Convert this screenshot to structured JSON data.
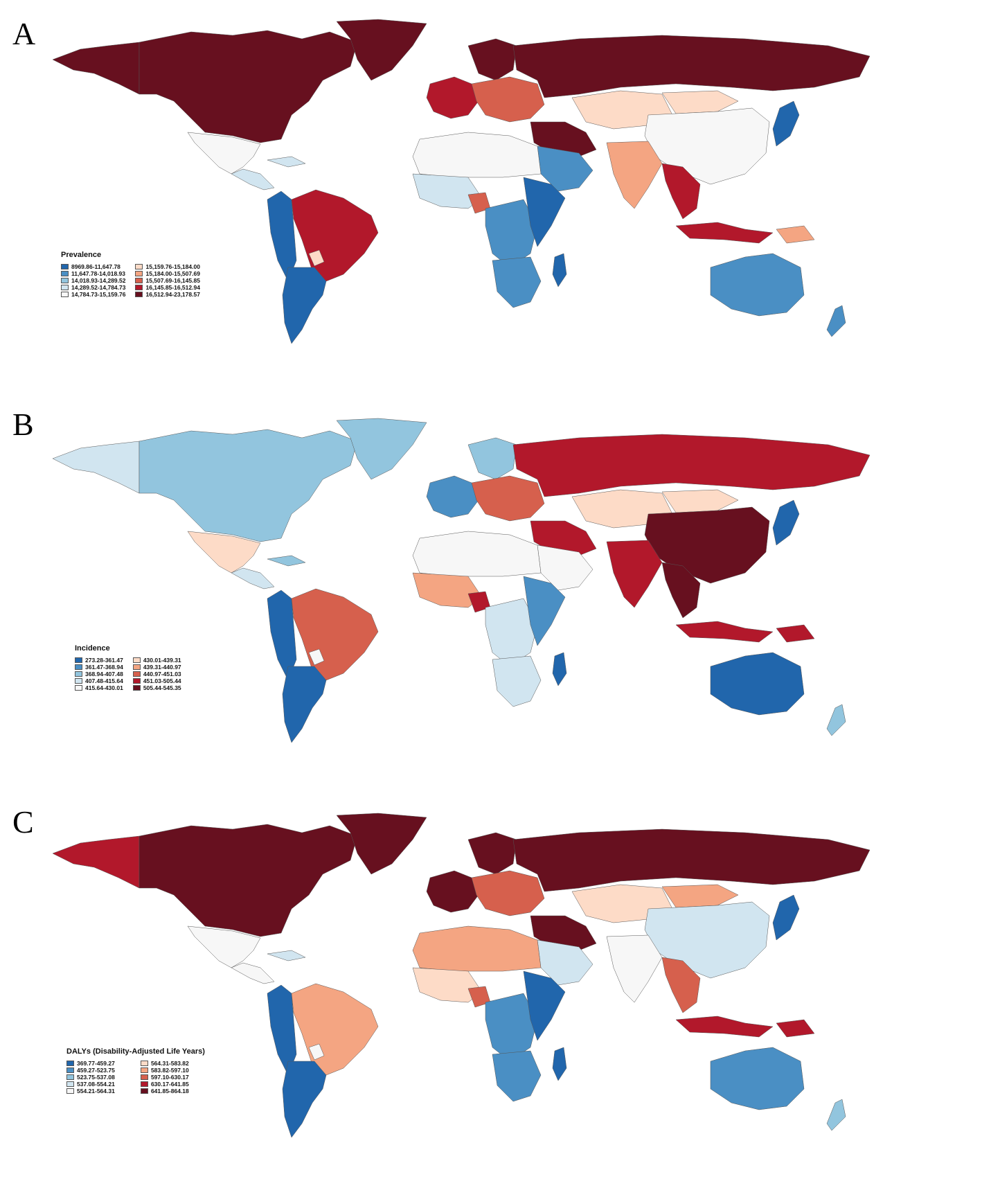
{
  "panels": [
    {
      "letter": "A",
      "legend": {
        "title": "Prevalence",
        "items": [
          {
            "label": "8969.86-11,647.78",
            "color": "#2166ac"
          },
          {
            "label": "11,647.78-14,018.93",
            "color": "#4a8fc4"
          },
          {
            "label": "14,018.93-14,289.52",
            "color": "#92c5de"
          },
          {
            "label": "14,289.52-14,784.73",
            "color": "#d1e5f0"
          },
          {
            "label": "14,784.73-15,159.76",
            "color": "#f7f7f7"
          },
          {
            "label": "15,159.76-15,184.00",
            "color": "#fddbc7"
          },
          {
            "label": "15,184.00-15,507.69",
            "color": "#f4a582"
          },
          {
            "label": "15,507.69-16,145.85",
            "color": "#d6604d"
          },
          {
            "label": "16,145.85-16,512.94",
            "color": "#b2182b"
          },
          {
            "label": "16,512.94-23,178.57",
            "color": "#67101f"
          }
        ]
      },
      "regions": {
        "north_america": "#67101f",
        "greenland": "#67101f",
        "alaska": "#67101f",
        "mexico": "#f7f7f7",
        "central_america": "#d1e5f0",
        "caribbean": "#d1e5f0",
        "south_america_west": "#2166ac",
        "brazil": "#b2182b",
        "argentina": "#2166ac",
        "paraguay": "#fddbc7",
        "western_europe": "#b2182b",
        "scandinavia": "#67101f",
        "eastern_europe": "#d6604d",
        "russia": "#67101f",
        "middle_east": "#67101f",
        "north_africa": "#f7f7f7",
        "west_africa": "#d1e5f0",
        "nigeria": "#d6604d",
        "central_africa": "#4a8fc4",
        "east_africa": "#2166ac",
        "southern_africa": "#4a8fc4",
        "madagascar": "#2166ac",
        "arabia": "#4a8fc4",
        "india": "#f4a582",
        "central_asia": "#fddbc7",
        "china": "#f7f7f7",
        "mongolia": "#fddbc7",
        "japan": "#2166ac",
        "se_asia": "#b2182b",
        "indonesia": "#b2182b",
        "australia": "#4a8fc4",
        "new_zealand": "#4a8fc4",
        "png": "#f4a582"
      }
    },
    {
      "letter": "B",
      "legend": {
        "title": "Incidence",
        "items": [
          {
            "label": "273.28-361.47",
            "color": "#2166ac"
          },
          {
            "label": "361.47-368.94",
            "color": "#4a8fc4"
          },
          {
            "label": "368.94-407.48",
            "color": "#92c5de"
          },
          {
            "label": "407.48-415.64",
            "color": "#d1e5f0"
          },
          {
            "label": "415.64-430.01",
            "color": "#f7f7f7"
          },
          {
            "label": "430.01-439.31",
            "color": "#fddbc7"
          },
          {
            "label": "439.31-440.97",
            "color": "#f4a582"
          },
          {
            "label": "440.97-451.03",
            "color": "#d6604d"
          },
          {
            "label": "451.03-505.44",
            "color": "#b2182b"
          },
          {
            "label": "505.44-545.35",
            "color": "#67101f"
          }
        ]
      },
      "regions": {
        "north_america": "#92c5de",
        "greenland": "#92c5de",
        "alaska": "#d1e5f0",
        "mexico": "#fddbc7",
        "central_america": "#d1e5f0",
        "caribbean": "#92c5de",
        "south_america_west": "#2166ac",
        "brazil": "#d6604d",
        "argentina": "#2166ac",
        "paraguay": "#f7f7f7",
        "western_europe": "#4a8fc4",
        "scandinavia": "#92c5de",
        "eastern_europe": "#d6604d",
        "russia": "#b2182b",
        "middle_east": "#b2182b",
        "north_africa": "#f7f7f7",
        "west_africa": "#f4a582",
        "nigeria": "#b2182b",
        "central_africa": "#d1e5f0",
        "east_africa": "#4a8fc4",
        "southern_africa": "#d1e5f0",
        "madagascar": "#2166ac",
        "arabia": "#f7f7f7",
        "india": "#b2182b",
        "central_asia": "#fddbc7",
        "china": "#67101f",
        "mongolia": "#fddbc7",
        "japan": "#2166ac",
        "se_asia": "#67101f",
        "indonesia": "#b2182b",
        "australia": "#2166ac",
        "new_zealand": "#92c5de",
        "png": "#b2182b"
      }
    },
    {
      "letter": "C",
      "legend": {
        "title": "DALYs (Disability-Adjusted Life Years)",
        "items": [
          {
            "label": "369.77-459.27",
            "color": "#2166ac"
          },
          {
            "label": "459.27-523.75",
            "color": "#4a8fc4"
          },
          {
            "label": "523.75-537.08",
            "color": "#92c5de"
          },
          {
            "label": "537.08-554.21",
            "color": "#d1e5f0"
          },
          {
            "label": "554.21-564.31",
            "color": "#f7f7f7"
          },
          {
            "label": "564.31-583.82",
            "color": "#fddbc7"
          },
          {
            "label": "583.82-597.10",
            "color": "#f4a582"
          },
          {
            "label": "597.10-630.17",
            "color": "#d6604d"
          },
          {
            "label": "630.17-641.85",
            "color": "#b2182b"
          },
          {
            "label": "641.85-864.18",
            "color": "#67101f"
          }
        ]
      },
      "regions": {
        "north_america": "#67101f",
        "greenland": "#67101f",
        "alaska": "#b2182b",
        "mexico": "#f7f7f7",
        "central_america": "#f7f7f7",
        "caribbean": "#d1e5f0",
        "south_america_west": "#2166ac",
        "brazil": "#f4a582",
        "argentina": "#2166ac",
        "paraguay": "#f7f7f7",
        "western_europe": "#67101f",
        "scandinavia": "#67101f",
        "eastern_europe": "#d6604d",
        "russia": "#67101f",
        "middle_east": "#67101f",
        "north_africa": "#f4a582",
        "west_africa": "#fddbc7",
        "nigeria": "#d6604d",
        "central_africa": "#4a8fc4",
        "east_africa": "#2166ac",
        "southern_africa": "#4a8fc4",
        "madagascar": "#2166ac",
        "arabia": "#d1e5f0",
        "india": "#f7f7f7",
        "central_asia": "#fddbc7",
        "china": "#d1e5f0",
        "mongolia": "#f4a582",
        "japan": "#2166ac",
        "se_asia": "#d6604d",
        "indonesia": "#b2182b",
        "australia": "#4a8fc4",
        "new_zealand": "#92c5de",
        "png": "#b2182b"
      }
    }
  ]
}
